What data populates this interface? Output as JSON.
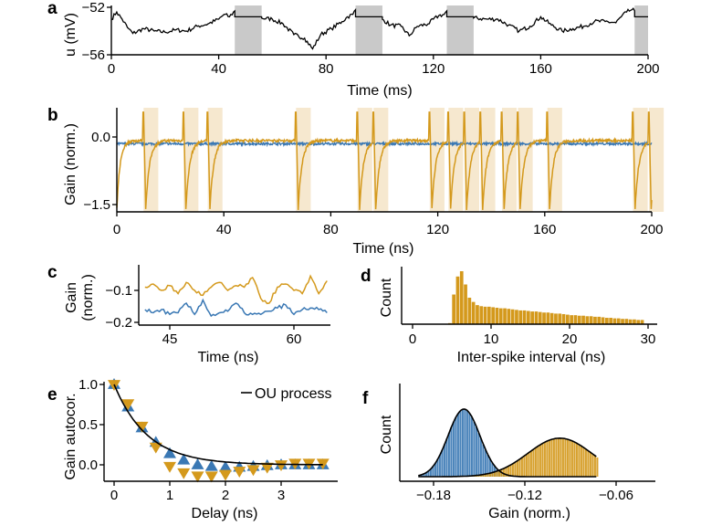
{
  "colors": {
    "orange": "#d4991c",
    "blue": "#3a78b4",
    "gray_band": "#c9c9c9",
    "spike_band": "#f6e8cf",
    "fit": "#000000"
  },
  "chart_data": [
    {
      "panel": "a",
      "type": "line",
      "xlabel": "Time (ms)",
      "ylabel": "u (mV)",
      "xlim": [
        0,
        200
      ],
      "ylim": [
        -56,
        -52
      ],
      "xticks": [
        "0",
        "40",
        "80",
        "120",
        "160",
        "200"
      ],
      "yticks": [
        "−52",
        "−56"
      ],
      "bands": [
        [
          46,
          56
        ],
        [
          91,
          101
        ],
        [
          125,
          135
        ],
        [
          195,
          200
        ]
      ],
      "series": [
        {
          "color": "black",
          "x": [
            0,
            2,
            4,
            6,
            8,
            12,
            16,
            20,
            24,
            28,
            32,
            36,
            40,
            42,
            44,
            46,
            46,
            56,
            56,
            60,
            64,
            68,
            72,
            75,
            78,
            82,
            86,
            88,
            90,
            91,
            91,
            101,
            101,
            104,
            108,
            111,
            114,
            118,
            122,
            124,
            125,
            125,
            135,
            135,
            140,
            144,
            148,
            152,
            156,
            160,
            164,
            168,
            172,
            176,
            180,
            184,
            188,
            190,
            192,
            194,
            195,
            195,
            200
          ],
          "y": [
            -53,
            -52.4,
            -53,
            -53.7,
            -54.2,
            -53.8,
            -54,
            -54.1,
            -53.9,
            -54,
            -53.6,
            -53.4,
            -53,
            -52.6,
            -52.8,
            -52.3,
            -52.8,
            -52.8,
            -52.9,
            -53,
            -53.4,
            -54.3,
            -54.6,
            -55.5,
            -54.3,
            -53.8,
            -53.2,
            -52.8,
            -52.6,
            -52.2,
            -52.8,
            -52.8,
            -53,
            -53.5,
            -53.6,
            -54.4,
            -53.6,
            -53.4,
            -52.7,
            -52.6,
            -52.3,
            -52.8,
            -52.8,
            -52.9,
            -53,
            -53,
            -53.5,
            -54,
            -53.6,
            -52.8,
            -53.5,
            -54,
            -53.8,
            -53.6,
            -53.2,
            -53.2,
            -53.3,
            -52.8,
            -52.4,
            -52.2,
            -52.3,
            -52.8,
            -52.8
          ]
        }
      ]
    },
    {
      "panel": "b",
      "type": "line",
      "xlabel": "Time (ns)",
      "ylabel": "Gain (norm.)",
      "xlim": [
        0,
        200
      ],
      "ylim": [
        -1.7,
        0.6
      ],
      "xticks": [
        "0",
        "40",
        "80",
        "120",
        "160",
        "200"
      ],
      "yticks": [
        "0.0",
        "−1.5"
      ],
      "spike_times": [
        10,
        25,
        34,
        67,
        90,
        96,
        117,
        124,
        130,
        136,
        144,
        150,
        161,
        193,
        199
      ],
      "refractory_window": 5.5,
      "series": [
        {
          "color": "orange",
          "baseline": -0.08,
          "spike_peak": 0.55,
          "spike_trough": -1.6
        },
        {
          "color": "blue",
          "baseline": -0.15
        }
      ]
    },
    {
      "panel": "c",
      "type": "line",
      "xlabel": "Time (ns)",
      "ylabel": [
        "Gain",
        "(norm.)"
      ],
      "xlim": [
        41.3,
        64.5
      ],
      "ylim": [
        -0.2,
        -0.025
      ],
      "xticks": [
        "45",
        "60"
      ],
      "yticks": [
        "−0.1",
        "−0.2"
      ],
      "series": [
        {
          "color": "orange",
          "x": [
            42,
            43,
            44,
            45,
            46,
            47,
            48,
            49,
            50,
            51,
            52,
            53,
            54,
            55,
            56,
            57,
            58,
            59,
            60,
            61,
            62,
            63,
            64
          ],
          "y": [
            -0.09,
            -0.08,
            -0.1,
            -0.085,
            -0.11,
            -0.075,
            -0.1,
            -0.115,
            -0.09,
            -0.075,
            -0.1,
            -0.085,
            -0.09,
            -0.06,
            -0.125,
            -0.14,
            -0.09,
            -0.08,
            -0.1,
            -0.11,
            -0.055,
            -0.11,
            -0.07
          ]
        },
        {
          "color": "blue",
          "x": [
            42,
            43,
            44,
            45,
            46,
            47,
            48,
            49,
            50,
            51,
            52,
            53,
            54,
            55,
            56,
            57,
            58,
            59,
            60,
            61,
            62,
            63,
            64
          ],
          "y": [
            -0.16,
            -0.17,
            -0.16,
            -0.175,
            -0.17,
            -0.14,
            -0.175,
            -0.13,
            -0.18,
            -0.17,
            -0.165,
            -0.14,
            -0.17,
            -0.175,
            -0.175,
            -0.165,
            -0.155,
            -0.145,
            -0.175,
            -0.16,
            -0.155,
            -0.16,
            -0.17
          ]
        }
      ]
    },
    {
      "panel": "d",
      "type": "bar",
      "xlabel": "Inter-spike interval (ns)",
      "ylabel": "Count",
      "xlim": [
        -2.5,
        31.5
      ],
      "xticks": [
        "0",
        "10",
        "20",
        "30"
      ],
      "bin_width": 0.5,
      "bin_starts": [
        4.5,
        5,
        5.5,
        6,
        6.5,
        7,
        7.5,
        8,
        8.5,
        9,
        9.5,
        10,
        10.5,
        11,
        11.5,
        12,
        12.5,
        13,
        13.5,
        14,
        14.5,
        15,
        15.5,
        16,
        16.5,
        17,
        17.5,
        18,
        18.5,
        19,
        19.5,
        20,
        20.5,
        21,
        21.5,
        22,
        22.5,
        23,
        23.5,
        24,
        24.5,
        25,
        25.5,
        26,
        26.5,
        27,
        27.5,
        28,
        28.5,
        29
      ],
      "values": [
        0.02,
        0.56,
        0.9,
        1.0,
        0.75,
        0.5,
        0.42,
        0.36,
        0.34,
        0.33,
        0.33,
        0.32,
        0.31,
        0.3,
        0.3,
        0.29,
        0.28,
        0.27,
        0.26,
        0.26,
        0.25,
        0.24,
        0.24,
        0.23,
        0.22,
        0.22,
        0.21,
        0.2,
        0.2,
        0.19,
        0.18,
        0.17,
        0.17,
        0.16,
        0.16,
        0.15,
        0.15,
        0.14,
        0.14,
        0.13,
        0.12,
        0.12,
        0.11,
        0.11,
        0.1,
        0.1,
        0.09,
        0.09,
        0.08,
        0.08
      ]
    },
    {
      "panel": "e",
      "type": "scatter",
      "xlabel": "Delay (ns)",
      "ylabel": "Gain autocor.",
      "xlim": [
        -0.3,
        3.9
      ],
      "ylim": [
        -0.21,
        1.05
      ],
      "xticks": [
        "0",
        "1",
        "2",
        "3"
      ],
      "yticks": [
        "1.0",
        "0.5",
        "0.0"
      ],
      "legend": {
        "label": "OU process",
        "placement": "top-right"
      },
      "x": [
        0,
        0.25,
        0.5,
        0.75,
        1,
        1.25,
        1.5,
        1.75,
        2,
        2.25,
        2.5,
        2.75,
        3,
        3.25,
        3.5,
        3.75
      ],
      "series": [
        {
          "color": "blue",
          "marker": "triangle-up",
          "values": [
            1.0,
            0.72,
            0.46,
            0.28,
            0.14,
            0.06,
            0.0,
            -0.02,
            -0.03,
            -0.03,
            -0.02,
            -0.01,
            0.0,
            0.0,
            0.0,
            0.0
          ]
        },
        {
          "color": "orange",
          "marker": "triangle-down",
          "values": [
            1.0,
            0.76,
            0.48,
            0.22,
            -0.02,
            -0.1,
            -0.14,
            -0.14,
            -0.12,
            -0.08,
            -0.06,
            -0.03,
            0.0,
            0.02,
            0.02,
            0.02
          ]
        }
      ]
    },
    {
      "panel": "f",
      "type": "bar",
      "xlabel": "Gain (norm.)",
      "ylabel": "Count",
      "xlim": [
        -0.2,
        -0.035
      ],
      "xticks": [
        "−0.18",
        "−0.12",
        "−0.06"
      ],
      "range": [
        -0.19,
        -0.072
      ],
      "series": [
        {
          "color": "blue",
          "fit_mean": -0.16,
          "fit_sd": 0.0105,
          "relative_peak": 1.0
        },
        {
          "color": "orange",
          "fit_mean": -0.097,
          "fit_sd": 0.021,
          "relative_peak": 0.57
        }
      ]
    }
  ],
  "panel_labels": [
    "a",
    "b",
    "c",
    "d",
    "e",
    "f"
  ]
}
